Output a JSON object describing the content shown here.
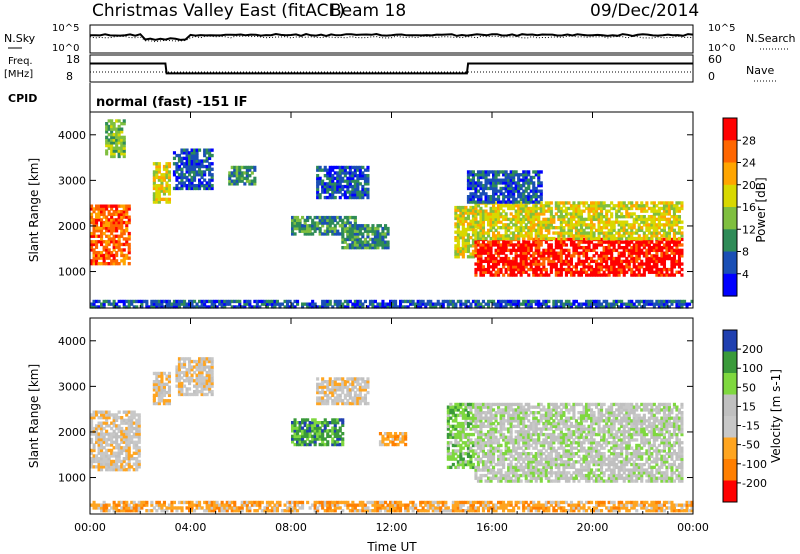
{
  "header": {
    "title": "Christmas Valley East (fitACF)",
    "beam": "Beam 18",
    "date": "09/Dec/2014"
  },
  "strip1": {
    "left_label": "N.Sky",
    "right_label": "N.Search",
    "left_ticks": [
      "10^5",
      "10^0"
    ],
    "right_ticks": [
      "10^5",
      "10^0"
    ]
  },
  "strip2": {
    "left_label_1": "Freq.",
    "left_label_2": "[MHz]",
    "right_label": "Nave",
    "left_ticks": [
      "18",
      "8"
    ],
    "right_ticks": [
      "60",
      "0"
    ]
  },
  "cpid": {
    "label": "CPID",
    "text": "normal (fast) -151 IF"
  },
  "colors": {
    "power": [
      "#0000ff",
      "#1a4fb5",
      "#2e8b57",
      "#7fbf3f",
      "#d8d800",
      "#ffa500",
      "#ff6600",
      "#ff0000"
    ],
    "velocity": [
      "#ff0000",
      "#ff7f00",
      "#ffa520",
      "#c8c8c8",
      "#c0c0c0",
      "#7fd83f",
      "#3a9a3a",
      "#2040b0"
    ]
  },
  "chart_data": [
    {
      "type": "heatmap",
      "name": "power",
      "ylabel": "Slant Range [km]",
      "yticks": [
        "1000",
        "2000",
        "3000",
        "4000"
      ],
      "ylim": [
        200,
        4500
      ],
      "xlim": [
        0,
        24
      ],
      "colorbar_label": "Power [dB]",
      "colorbar_ticks": [
        "4",
        "8",
        "12",
        "16",
        "20",
        "24",
        "28"
      ],
      "regions": [
        {
          "t": [
            0.0,
            1.6
          ],
          "r": [
            1150,
            2450
          ],
          "level": 6
        },
        {
          "t": [
            0.6,
            1.4
          ],
          "r": [
            3500,
            4300
          ],
          "level": 3
        },
        {
          "t": [
            2.5,
            3.2
          ],
          "r": [
            2500,
            3400
          ],
          "level": 4
        },
        {
          "t": [
            3.3,
            4.8
          ],
          "r": [
            2800,
            3700
          ],
          "level": 1
        },
        {
          "t": [
            5.5,
            6.5
          ],
          "r": [
            2900,
            3300
          ],
          "level": 2
        },
        {
          "t": [
            8.0,
            10.5
          ],
          "r": [
            1800,
            2200
          ],
          "level": 2
        },
        {
          "t": [
            9.0,
            11.0
          ],
          "r": [
            2600,
            3300
          ],
          "level": 1
        },
        {
          "t": [
            10.0,
            11.8
          ],
          "r": [
            1500,
            2000
          ],
          "level": 2
        },
        {
          "t": [
            14.5,
            15.3
          ],
          "r": [
            1300,
            2400
          ],
          "level": 4
        },
        {
          "t": [
            15.3,
            23.6
          ],
          "r": [
            900,
            1700
          ],
          "level": 7
        },
        {
          "t": [
            15.3,
            23.6
          ],
          "r": [
            1700,
            2500
          ],
          "level": 4
        },
        {
          "t": [
            15.0,
            18.0
          ],
          "r": [
            2500,
            3200
          ],
          "level": 1
        },
        {
          "t": [
            0.0,
            24.0
          ],
          "r": [
            200,
            350
          ],
          "level": 1
        }
      ]
    },
    {
      "type": "heatmap",
      "name": "velocity",
      "ylabel": "Slant Range [km]",
      "yticks": [
        "1000",
        "2000",
        "3000",
        "4000"
      ],
      "ylim": [
        200,
        4500
      ],
      "xlim": [
        0,
        24
      ],
      "colorbar_label": "Velocity [m s-1]",
      "colorbar_ticks": [
        "200",
        "100",
        "50",
        "15",
        "-15",
        "-50",
        "-100",
        "-200"
      ],
      "xticks": [
        "00:00",
        "04:00",
        "08:00",
        "12:00",
        "16:00",
        "20:00",
        "00:00"
      ],
      "xlabel": "Time UT",
      "regions": [
        {
          "t": [
            0.0,
            2.0
          ],
          "r": [
            1150,
            2450
          ],
          "level": 3
        },
        {
          "t": [
            2.5,
            3.2
          ],
          "r": [
            2600,
            3300
          ],
          "level": 3
        },
        {
          "t": [
            3.4,
            4.8
          ],
          "r": [
            2800,
            3600
          ],
          "level": 3
        },
        {
          "t": [
            8.0,
            10.0
          ],
          "r": [
            1700,
            2300
          ],
          "level": 6
        },
        {
          "t": [
            9.0,
            11.0
          ],
          "r": [
            2600,
            3200
          ],
          "level": 3
        },
        {
          "t": [
            11.5,
            12.5
          ],
          "r": [
            1700,
            2000
          ],
          "level": 2
        },
        {
          "t": [
            14.2,
            15.2
          ],
          "r": [
            1200,
            2600
          ],
          "level": 5
        },
        {
          "t": [
            15.3,
            23.6
          ],
          "r": [
            900,
            2600
          ],
          "level": 4
        },
        {
          "t": [
            0.0,
            24.0
          ],
          "r": [
            250,
            450
          ],
          "level": 2
        }
      ]
    }
  ],
  "freq_series": [
    {
      "t": 0.0,
      "mhz": 15.5
    },
    {
      "t": 3.0,
      "mhz": 15.5
    },
    {
      "t": 3.05,
      "mhz": 11.0
    },
    {
      "t": 15.0,
      "mhz": 11.0
    },
    {
      "t": 15.05,
      "mhz": 15.5
    },
    {
      "t": 24.0,
      "mhz": 15.5
    }
  ]
}
